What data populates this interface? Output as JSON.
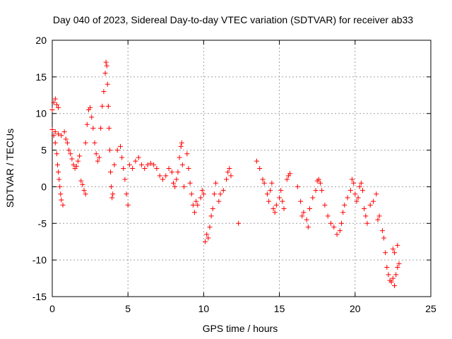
{
  "chart_data": {
    "type": "scatter",
    "title": "Day 040 of 2023, Sidereal Day-to-day VTEC variation (SDTVAR) for receiver ab33",
    "xlabel": "GPS time / hours",
    "ylabel": "SDTVAR / TECUs",
    "xlim": [
      0,
      25
    ],
    "ylim": [
      -15,
      20
    ],
    "xticks": [
      0,
      5,
      10,
      15,
      20,
      25
    ],
    "yticks": [
      -15,
      -10,
      -5,
      0,
      5,
      10,
      15,
      20
    ],
    "grid": true,
    "marker": "+",
    "color": "#ff0000",
    "series": [
      {
        "name": "SDTVAR",
        "points": [
          [
            0.0,
            10.5
          ],
          [
            0.1,
            11.5
          ],
          [
            0.2,
            12.0
          ],
          [
            0.3,
            11.2
          ],
          [
            0.4,
            10.8
          ],
          [
            0.0,
            7.8
          ],
          [
            0.1,
            7.0
          ],
          [
            0.2,
            6.0
          ],
          [
            0.3,
            4.5
          ],
          [
            0.35,
            3.0
          ],
          [
            0.4,
            2.0
          ],
          [
            0.45,
            1.0
          ],
          [
            0.5,
            0.0
          ],
          [
            0.55,
            -1.0
          ],
          [
            0.6,
            -1.8
          ],
          [
            0.7,
            -2.5
          ],
          [
            0.2,
            7.5
          ],
          [
            0.4,
            7.2
          ],
          [
            0.6,
            7.0
          ],
          [
            0.8,
            7.5
          ],
          [
            0.9,
            6.5
          ],
          [
            1.0,
            6.0
          ],
          [
            1.1,
            5.0
          ],
          [
            1.2,
            4.5
          ],
          [
            1.3,
            3.8
          ],
          [
            1.4,
            3.0
          ],
          [
            1.5,
            2.5
          ],
          [
            1.6,
            2.8
          ],
          [
            1.7,
            3.5
          ],
          [
            1.8,
            4.2
          ],
          [
            1.9,
            0.8
          ],
          [
            2.0,
            0.3
          ],
          [
            2.1,
            -0.5
          ],
          [
            2.2,
            -1.0
          ],
          [
            2.2,
            6.0
          ],
          [
            2.3,
            8.5
          ],
          [
            2.4,
            10.5
          ],
          [
            2.5,
            10.8
          ],
          [
            2.6,
            9.5
          ],
          [
            2.7,
            8.0
          ],
          [
            2.8,
            6.0
          ],
          [
            2.9,
            4.5
          ],
          [
            3.0,
            3.5
          ],
          [
            3.1,
            4.0
          ],
          [
            3.2,
            8.0
          ],
          [
            3.3,
            11.0
          ],
          [
            3.4,
            13.0
          ],
          [
            3.5,
            15.5
          ],
          [
            3.55,
            17.0
          ],
          [
            3.6,
            16.5
          ],
          [
            3.65,
            14.0
          ],
          [
            3.7,
            11.0
          ],
          [
            3.75,
            8.0
          ],
          [
            3.8,
            5.0
          ],
          [
            3.85,
            2.0
          ],
          [
            3.9,
            0.0
          ],
          [
            3.95,
            -1.5
          ],
          [
            4.0,
            -1.0
          ],
          [
            4.1,
            3.0
          ],
          [
            4.3,
            5.0
          ],
          [
            4.5,
            5.5
          ],
          [
            4.6,
            4.0
          ],
          [
            4.7,
            2.5
          ],
          [
            4.8,
            1.0
          ],
          [
            4.9,
            -1.0
          ],
          [
            5.0,
            -2.5
          ],
          [
            5.1,
            3.0
          ],
          [
            5.3,
            2.5
          ],
          [
            5.5,
            3.5
          ],
          [
            5.7,
            4.0
          ],
          [
            5.9,
            3.0
          ],
          [
            6.1,
            2.5
          ],
          [
            6.3,
            3.0
          ],
          [
            6.5,
            3.2
          ],
          [
            6.7,
            3.0
          ],
          [
            6.9,
            2.5
          ],
          [
            7.1,
            1.5
          ],
          [
            7.3,
            1.0
          ],
          [
            7.5,
            1.5
          ],
          [
            7.7,
            2.5
          ],
          [
            7.9,
            2.0
          ],
          [
            8.0,
            0.5
          ],
          [
            8.1,
            0.0
          ],
          [
            8.2,
            1.0
          ],
          [
            8.3,
            2.0
          ],
          [
            8.4,
            4.0
          ],
          [
            8.5,
            5.5
          ],
          [
            8.55,
            6.0
          ],
          [
            8.6,
            3.0
          ],
          [
            8.7,
            0.0
          ],
          [
            8.9,
            4.5
          ],
          [
            9.0,
            2.5
          ],
          [
            9.1,
            0.5
          ],
          [
            9.2,
            -1.0
          ],
          [
            9.3,
            -2.5
          ],
          [
            9.4,
            -3.5
          ],
          [
            9.5,
            -2.0
          ],
          [
            9.6,
            -2.5
          ],
          [
            9.8,
            -1.5
          ],
          [
            9.9,
            -0.5
          ],
          [
            10.0,
            -1.0
          ],
          [
            10.1,
            -7.5
          ],
          [
            10.2,
            -6.5
          ],
          [
            10.3,
            -7.0
          ],
          [
            10.4,
            -5.5
          ],
          [
            10.5,
            -4.0
          ],
          [
            10.6,
            -3.0
          ],
          [
            10.7,
            -1.0
          ],
          [
            10.8,
            0.5
          ],
          [
            11.0,
            -2.0
          ],
          [
            11.1,
            -1.0
          ],
          [
            11.3,
            -0.5
          ],
          [
            11.5,
            1.0
          ],
          [
            11.6,
            2.0
          ],
          [
            11.7,
            2.5
          ],
          [
            11.8,
            1.5
          ],
          [
            12.3,
            -5.0
          ],
          [
            13.5,
            3.5
          ],
          [
            13.7,
            2.5
          ],
          [
            13.9,
            1.0
          ],
          [
            14.0,
            0.5
          ],
          [
            14.2,
            -1.0
          ],
          [
            14.3,
            -2.0
          ],
          [
            14.4,
            -0.5
          ],
          [
            14.5,
            0.5
          ],
          [
            14.6,
            -3.0
          ],
          [
            14.7,
            -3.5
          ],
          [
            14.8,
            -2.5
          ],
          [
            15.0,
            -1.5
          ],
          [
            15.1,
            -0.5
          ],
          [
            15.2,
            -2.0
          ],
          [
            15.3,
            -3.0
          ],
          [
            15.5,
            1.0
          ],
          [
            15.6,
            1.5
          ],
          [
            15.7,
            1.8
          ],
          [
            16.2,
            0.0
          ],
          [
            16.4,
            -2.0
          ],
          [
            16.5,
            -4.0
          ],
          [
            16.6,
            -3.5
          ],
          [
            16.8,
            -4.5
          ],
          [
            16.9,
            -5.5
          ],
          [
            17.0,
            -3.0
          ],
          [
            17.2,
            -1.5
          ],
          [
            17.4,
            -0.5
          ],
          [
            17.5,
            0.8
          ],
          [
            17.6,
            1.0
          ],
          [
            17.7,
            0.5
          ],
          [
            17.8,
            -0.5
          ],
          [
            18.0,
            -2.5
          ],
          [
            18.2,
            -4.0
          ],
          [
            18.4,
            -5.0
          ],
          [
            18.6,
            -5.5
          ],
          [
            18.8,
            -6.5
          ],
          [
            19.0,
            -6.0
          ],
          [
            19.1,
            -5.0
          ],
          [
            19.2,
            -3.5
          ],
          [
            19.3,
            -2.5
          ],
          [
            19.5,
            -1.5
          ],
          [
            19.7,
            -0.5
          ],
          [
            19.8,
            1.0
          ],
          [
            19.9,
            0.5
          ],
          [
            20.0,
            -1.0
          ],
          [
            20.1,
            -2.0
          ],
          [
            20.2,
            -1.5
          ],
          [
            20.3,
            0.0
          ],
          [
            20.4,
            0.5
          ],
          [
            20.5,
            -0.5
          ],
          [
            20.6,
            -3.0
          ],
          [
            20.7,
            -4.0
          ],
          [
            20.8,
            -5.0
          ],
          [
            21.0,
            -2.5
          ],
          [
            21.2,
            -2.0
          ],
          [
            21.4,
            -1.0
          ],
          [
            21.5,
            -4.5
          ],
          [
            21.6,
            -4.0
          ],
          [
            21.8,
            -6.0
          ],
          [
            21.9,
            -7.0
          ],
          [
            22.0,
            -9.0
          ],
          [
            22.1,
            -11.0
          ],
          [
            22.2,
            -12.0
          ],
          [
            22.3,
            -12.8
          ],
          [
            22.4,
            -13.0
          ],
          [
            22.5,
            -12.5
          ],
          [
            22.6,
            -13.5
          ],
          [
            22.7,
            -12.0
          ],
          [
            22.8,
            -11.0
          ],
          [
            22.9,
            -10.5
          ],
          [
            22.5,
            -8.5
          ],
          [
            22.6,
            -9.0
          ],
          [
            22.8,
            -8.0
          ]
        ]
      }
    ]
  }
}
